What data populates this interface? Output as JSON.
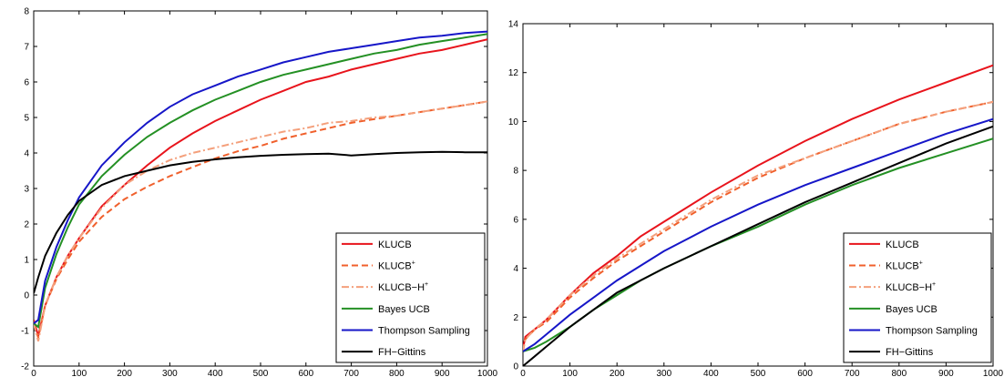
{
  "chart_data": [
    {
      "type": "line",
      "title": "",
      "xlabel": "",
      "ylabel": "",
      "xlim": [
        0,
        1000
      ],
      "ylim": [
        -2,
        8
      ],
      "xticks": [
        "0",
        "100",
        "200",
        "300",
        "400",
        "500",
        "600",
        "700",
        "800",
        "900",
        "1000"
      ],
      "yticks": [
        "-2",
        "-1",
        "0",
        "1",
        "2",
        "3",
        "4",
        "5",
        "6",
        "7",
        "8"
      ],
      "legend_position": "bottom-right",
      "grid": false,
      "series": [
        {
          "name": "KLUCB",
          "sup": "",
          "color": "#e8141c",
          "dash": "solid",
          "x": [
            0,
            10,
            25,
            50,
            75,
            100,
            150,
            200,
            250,
            300,
            350,
            400,
            450,
            500,
            550,
            600,
            650,
            700,
            750,
            800,
            850,
            900,
            950,
            1000
          ],
          "values": [
            -0.7,
            -1.15,
            -0.3,
            0.5,
            1.1,
            1.6,
            2.5,
            3.1,
            3.65,
            4.15,
            4.55,
            4.9,
            5.2,
            5.5,
            5.75,
            6.0,
            6.15,
            6.35,
            6.5,
            6.65,
            6.8,
            6.9,
            7.05,
            7.2
          ]
        },
        {
          "name": "KLUCB",
          "sup": "+",
          "color": "#f0602c",
          "dash": "dashed",
          "x": [
            0,
            10,
            25,
            50,
            75,
            100,
            150,
            200,
            250,
            300,
            350,
            400,
            450,
            500,
            550,
            600,
            650,
            700,
            750,
            800,
            850,
            900,
            950,
            1000
          ],
          "values": [
            -0.8,
            -1.2,
            -0.3,
            0.45,
            1.0,
            1.5,
            2.2,
            2.7,
            3.05,
            3.35,
            3.6,
            3.85,
            4.05,
            4.2,
            4.4,
            4.55,
            4.7,
            4.85,
            4.95,
            5.05,
            5.15,
            5.25,
            5.35,
            5.45
          ]
        },
        {
          "name": "KLUCB−H",
          "sup": "+",
          "color": "#f4a07c",
          "dash": "dashdot",
          "x": [
            0,
            10,
            25,
            50,
            75,
            100,
            150,
            200,
            250,
            300,
            350,
            400,
            450,
            500,
            550,
            600,
            650,
            700,
            750,
            800,
            850,
            900,
            950,
            1000
          ],
          "values": [
            -0.8,
            -1.3,
            -0.3,
            0.5,
            1.1,
            1.6,
            2.45,
            3.1,
            3.5,
            3.8,
            4.0,
            4.15,
            4.3,
            4.45,
            4.6,
            4.7,
            4.85,
            4.9,
            5.0,
            5.05,
            5.15,
            5.25,
            5.35,
            5.45
          ]
        },
        {
          "name": "Bayes UCB",
          "sup": "",
          "color": "#249024",
          "dash": "solid",
          "x": [
            0,
            10,
            25,
            50,
            75,
            100,
            150,
            200,
            250,
            300,
            350,
            400,
            450,
            500,
            550,
            600,
            650,
            700,
            750,
            800,
            850,
            900,
            950,
            1000
          ],
          "values": [
            -0.8,
            -0.9,
            0.2,
            1.15,
            1.9,
            2.55,
            3.35,
            3.95,
            4.45,
            4.85,
            5.2,
            5.5,
            5.75,
            6.0,
            6.2,
            6.35,
            6.5,
            6.65,
            6.8,
            6.9,
            7.05,
            7.15,
            7.25,
            7.35
          ]
        },
        {
          "name": "Thompson Sampling",
          "sup": "",
          "color": "#1616c8",
          "dash": "solid",
          "x": [
            0,
            10,
            25,
            50,
            75,
            100,
            150,
            200,
            250,
            300,
            350,
            400,
            450,
            500,
            550,
            600,
            650,
            700,
            750,
            800,
            850,
            900,
            950,
            1000
          ],
          "values": [
            -0.8,
            -0.7,
            0.4,
            1.35,
            2.1,
            2.75,
            3.65,
            4.3,
            4.85,
            5.3,
            5.65,
            5.9,
            6.15,
            6.35,
            6.55,
            6.7,
            6.85,
            6.95,
            7.05,
            7.15,
            7.25,
            7.3,
            7.38,
            7.42
          ]
        },
        {
          "name": "FH−Gittins",
          "sup": "",
          "color": "#000000",
          "dash": "solid",
          "x": [
            0,
            10,
            25,
            50,
            75,
            100,
            150,
            200,
            250,
            300,
            350,
            400,
            450,
            500,
            550,
            600,
            650,
            700,
            750,
            800,
            850,
            900,
            950,
            1000
          ],
          "values": [
            0.05,
            0.5,
            1.1,
            1.75,
            2.25,
            2.65,
            3.1,
            3.35,
            3.5,
            3.65,
            3.75,
            3.82,
            3.88,
            3.92,
            3.95,
            3.97,
            3.98,
            3.93,
            3.97,
            4.0,
            4.02,
            4.03,
            4.02,
            4.02
          ]
        }
      ]
    },
    {
      "type": "line",
      "title": "",
      "xlabel": "",
      "ylabel": "",
      "xlim": [
        0,
        1000
      ],
      "ylim": [
        0,
        14
      ],
      "xticks": [
        "0",
        "100",
        "200",
        "300",
        "400",
        "500",
        "600",
        "700",
        "800",
        "900",
        "1000"
      ],
      "yticks": [
        "0",
        "2",
        "4",
        "6",
        "8",
        "10",
        "12",
        "14"
      ],
      "legend_position": "bottom-right",
      "grid": false,
      "series": [
        {
          "name": "KLUCB",
          "sup": "",
          "color": "#e8141c",
          "dash": "solid",
          "x": [
            0,
            5,
            25,
            50,
            100,
            150,
            200,
            250,
            300,
            400,
            500,
            600,
            700,
            800,
            900,
            1000
          ],
          "values": [
            0.7,
            1.2,
            1.5,
            1.9,
            2.9,
            3.8,
            4.5,
            5.3,
            5.9,
            7.1,
            8.2,
            9.2,
            10.1,
            10.9,
            11.6,
            12.3
          ]
        },
        {
          "name": "KLUCB",
          "sup": "+",
          "color": "#f0602c",
          "dash": "dashed",
          "x": [
            0,
            5,
            25,
            50,
            100,
            150,
            200,
            250,
            300,
            400,
            500,
            600,
            700,
            800,
            900,
            1000
          ],
          "values": [
            0.6,
            1.1,
            1.5,
            1.8,
            2.8,
            3.6,
            4.3,
            4.9,
            5.5,
            6.7,
            7.7,
            8.5,
            9.2,
            9.9,
            10.4,
            10.8
          ]
        },
        {
          "name": "KLUCB−H",
          "sup": "+",
          "color": "#f4a07c",
          "dash": "dashdot",
          "x": [
            0,
            5,
            25,
            50,
            100,
            150,
            200,
            250,
            300,
            400,
            500,
            600,
            700,
            800,
            900,
            1000
          ],
          "values": [
            0.6,
            1.1,
            1.5,
            1.9,
            2.9,
            3.7,
            4.4,
            5.0,
            5.6,
            6.8,
            7.8,
            8.5,
            9.2,
            9.9,
            10.4,
            10.8
          ]
        },
        {
          "name": "Bayes UCB",
          "sup": "",
          "color": "#249024",
          "dash": "solid",
          "x": [
            0,
            25,
            50,
            100,
            150,
            200,
            250,
            300,
            400,
            500,
            600,
            700,
            800,
            900,
            1000
          ],
          "values": [
            0.6,
            0.75,
            1.0,
            1.6,
            2.3,
            2.9,
            3.5,
            4.0,
            4.9,
            5.7,
            6.6,
            7.4,
            8.1,
            8.7,
            9.3
          ]
        },
        {
          "name": "Thompson Sampling",
          "sup": "",
          "color": "#1616c8",
          "dash": "solid",
          "x": [
            0,
            25,
            50,
            100,
            150,
            200,
            250,
            300,
            400,
            500,
            600,
            700,
            800,
            900,
            1000
          ],
          "values": [
            0.6,
            0.9,
            1.3,
            2.1,
            2.8,
            3.5,
            4.1,
            4.7,
            5.7,
            6.6,
            7.4,
            8.1,
            8.8,
            9.5,
            10.1
          ]
        },
        {
          "name": "FH−Gittins",
          "sup": "",
          "color": "#000000",
          "dash": "solid",
          "x": [
            0,
            25,
            50,
            100,
            150,
            200,
            250,
            300,
            400,
            500,
            600,
            700,
            800,
            900,
            1000
          ],
          "values": [
            0.0,
            0.4,
            0.8,
            1.6,
            2.3,
            3.0,
            3.5,
            4.0,
            4.9,
            5.8,
            6.7,
            7.5,
            8.3,
            9.1,
            9.8
          ]
        }
      ]
    }
  ]
}
